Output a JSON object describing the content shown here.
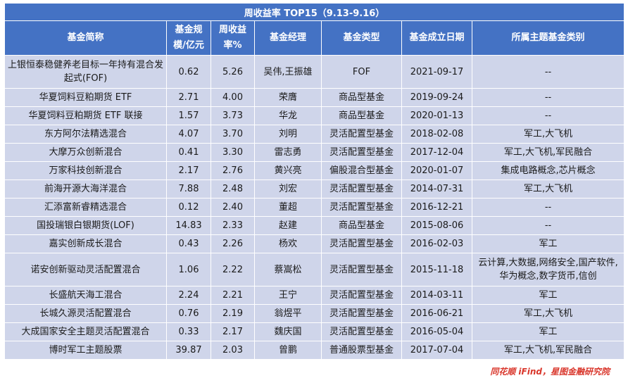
{
  "title": "周收益率 TOP15（9.13-9.16）",
  "headers": {
    "name": "基金简称",
    "size": "基金规模/亿元",
    "ret": "周收益率%",
    "manager": "基金经理",
    "type": "基金类型",
    "date": "基金成立日期",
    "theme": "所属主题基金类别"
  },
  "rows": [
    {
      "name": "上银恒泰稳健养老目标一年持有混合发起式(FOF)",
      "size": "0.62",
      "ret": "5.26",
      "manager": "吴伟,王振雄",
      "type": "FOF",
      "date": "2021-09-17",
      "theme": "--"
    },
    {
      "name": "华夏饲料豆粕期货 ETF",
      "size": "2.71",
      "ret": "4.00",
      "manager": "荣膺",
      "type": "商品型基金",
      "date": "2019-09-24",
      "theme": "--"
    },
    {
      "name": "华夏饲料豆粕期货 ETF 联接",
      "size": "1.57",
      "ret": "3.73",
      "manager": "华龙",
      "type": "商品型基金",
      "date": "2020-01-13",
      "theme": "--"
    },
    {
      "name": "东方阿尔法精选混合",
      "size": "4.07",
      "ret": "3.70",
      "manager": "刘明",
      "type": "灵活配置型基金",
      "date": "2018-02-08",
      "theme": "军工,大飞机"
    },
    {
      "name": "大摩万众创新混合",
      "size": "0.41",
      "ret": "3.30",
      "manager": "雷志勇",
      "type": "灵活配置型基金",
      "date": "2017-12-04",
      "theme": "军工,大飞机,军民融合"
    },
    {
      "name": "万家科技创新混合",
      "size": "2.17",
      "ret": "2.76",
      "manager": "黄兴亮",
      "type": "偏股混合型基金",
      "date": "2020-01-07",
      "theme": "集成电路概念,芯片概念"
    },
    {
      "name": "前海开源大海洋混合",
      "size": "7.88",
      "ret": "2.48",
      "manager": "刘宏",
      "type": "灵活配置型基金",
      "date": "2014-07-31",
      "theme": "军工,大飞机"
    },
    {
      "name": "汇添富新睿精选混合",
      "size": "0.12",
      "ret": "2.40",
      "manager": "董超",
      "type": "灵活配置型基金",
      "date": "2016-12-21",
      "theme": "--"
    },
    {
      "name": "国投瑞银白银期货(LOF)",
      "size": "14.83",
      "ret": "2.33",
      "manager": "赵建",
      "type": "商品型基金",
      "date": "2015-08-06",
      "theme": "--"
    },
    {
      "name": "嘉实创新成长混合",
      "size": "0.43",
      "ret": "2.26",
      "manager": "杨欢",
      "type": "灵活配置型基金",
      "date": "2016-02-03",
      "theme": "军工"
    },
    {
      "name": "诺安创新驱动灵活配置混合",
      "size": "1.06",
      "ret": "2.22",
      "manager": "蔡嵩松",
      "type": "灵活配置型基金",
      "date": "2015-11-18",
      "theme": "云计算,大数据,网络安全,国产软件,华为概念,数字货币,信创"
    },
    {
      "name": "长盛航天海工混合",
      "size": "2.24",
      "ret": "2.21",
      "manager": "王宁",
      "type": "灵活配置型基金",
      "date": "2014-03-11",
      "theme": "军工"
    },
    {
      "name": "长城久源灵活配置混合",
      "size": "0.76",
      "ret": "2.19",
      "manager": "翁煜平",
      "type": "灵活配置型基金",
      "date": "2016-06-21",
      "theme": "军工,大飞机"
    },
    {
      "name": "大成国家安全主题灵活配置混合",
      "size": "0.33",
      "ret": "2.17",
      "manager": "魏庆国",
      "type": "灵活配置型基金",
      "date": "2016-05-04",
      "theme": "军工"
    },
    {
      "name": "博时军工主题股票",
      "size": "39.87",
      "ret": "2.03",
      "manager": "曾鹏",
      "type": "普通股票型基金",
      "date": "2017-07-04",
      "theme": "军工,大飞机,军民融合"
    }
  ],
  "source": "同花顺 iFind，星图金融研究院"
}
